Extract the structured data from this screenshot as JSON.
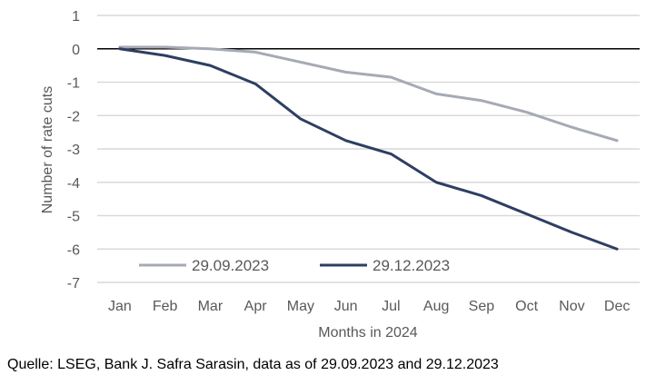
{
  "chart_data": {
    "type": "line",
    "categories": [
      "Jan",
      "Feb",
      "Mar",
      "Apr",
      "May",
      "Jun",
      "Jul",
      "Aug",
      "Sep",
      "Oct",
      "Nov",
      "Dec"
    ],
    "series": [
      {
        "name": "29.09.2023",
        "color": "#a6a9b6",
        "values": [
          0.05,
          0.05,
          0.0,
          -0.1,
          -0.4,
          -0.7,
          -0.85,
          -1.35,
          -1.55,
          -1.9,
          -2.35,
          -2.75
        ]
      },
      {
        "name": "29.12.2023",
        "color": "#2e3e63",
        "values": [
          0.0,
          -0.2,
          -0.5,
          -1.05,
          -2.1,
          -2.75,
          -3.15,
          -4.0,
          -4.4,
          -4.95,
          -5.5,
          -6.0
        ]
      }
    ],
    "xlabel": "Months in 2024",
    "ylabel": "Number of rate cuts",
    "ylim": [
      -7,
      1
    ],
    "yticks": [
      1,
      0,
      -1,
      -2,
      -3,
      -4,
      -5,
      -6,
      -7
    ],
    "grid": true,
    "legend": "bottom-left inside plot"
  },
  "source": "Quelle: LSEG, Bank J. Safra Sarasin, data as of 29.09.2023 and 29.12.2023"
}
